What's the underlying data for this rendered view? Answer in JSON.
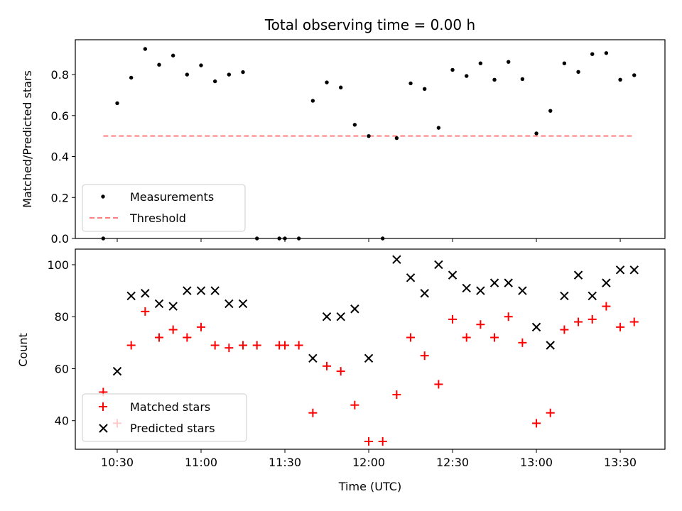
{
  "chart_data": [
    {
      "type": "scatter",
      "title": "Total observing time = 0.00 h",
      "xlabel": "",
      "ylabel": "Matched/Predicted stars",
      "ylim": [
        0,
        0.97
      ],
      "yticks": [
        0.0,
        0.2,
        0.4,
        0.6,
        0.8
      ],
      "ytick_labels": [
        "0.0",
        "0.2",
        "0.4",
        "0.6",
        "0.8"
      ],
      "xticks_minutes": [
        630,
        660,
        690,
        720,
        750,
        780,
        810
      ],
      "xlim_minutes": [
        615,
        826
      ],
      "legend": "lower-left",
      "series": [
        {
          "name": "Measurements",
          "marker": "dot",
          "color": "#000000",
          "x": [
            "10:25",
            "10:30",
            "10:35",
            "10:40",
            "10:45",
            "10:50",
            "10:55",
            "11:00",
            "11:05",
            "11:10",
            "11:15",
            "11:20",
            "11:28",
            "11:30",
            "11:35",
            "11:40",
            "11:45",
            "11:50",
            "11:55",
            "12:00",
            "12:05",
            "12:10",
            "12:15",
            "12:20",
            "12:25",
            "12:30",
            "12:35",
            "12:40",
            "12:45",
            "12:50",
            "12:55",
            "13:00",
            "13:05",
            "13:10",
            "13:15",
            "13:20",
            "13:25",
            "13:30",
            "13:35"
          ],
          "y": [
            0.0,
            0.66,
            0.785,
            0.925,
            0.848,
            0.893,
            0.8,
            0.845,
            0.767,
            0.8,
            0.812,
            0.0,
            0.0,
            0.0,
            0.0,
            0.672,
            0.762,
            0.737,
            0.555,
            0.5,
            0.0,
            0.49,
            0.757,
            0.73,
            0.54,
            0.823,
            0.793,
            0.855,
            0.775,
            0.862,
            0.778,
            0.513,
            0.623,
            0.855,
            0.813,
            0.9,
            0.905,
            0.775,
            0.797
          ]
        },
        {
          "name": "Threshold",
          "marker": "dashed-line",
          "color": "#ff7f7f",
          "x": [
            "10:25",
            "13:35"
          ],
          "y": [
            0.5,
            0.5
          ]
        }
      ]
    },
    {
      "type": "scatter",
      "title": "",
      "xlabel": "Time (UTC)",
      "ylabel": "Count",
      "ylim": [
        29,
        106
      ],
      "yticks": [
        40,
        60,
        80,
        100
      ],
      "ytick_labels": [
        "40",
        "60",
        "80",
        "100"
      ],
      "xticks_minutes": [
        630,
        660,
        690,
        720,
        750,
        780,
        810
      ],
      "xtick_labels": [
        "10:30",
        "11:00",
        "11:30",
        "12:00",
        "12:30",
        "13:00",
        "13:30"
      ],
      "xlim_minutes": [
        615,
        826
      ],
      "legend": "lower-left",
      "series": [
        {
          "name": "Matched stars",
          "marker": "plus",
          "color": "#ff0000",
          "x": [
            "10:25",
            "10:30",
            "10:35",
            "10:40",
            "10:45",
            "10:50",
            "10:55",
            "11:00",
            "11:05",
            "11:10",
            "11:15",
            "11:20",
            "11:28",
            "11:30",
            "11:35",
            "11:40",
            "11:45",
            "11:50",
            "11:55",
            "12:00",
            "12:05",
            "12:10",
            "12:15",
            "12:20",
            "12:25",
            "12:30",
            "12:35",
            "12:40",
            "12:45",
            "12:50",
            "12:55",
            "13:00",
            "13:05",
            "13:10",
            "13:15",
            "13:20",
            "13:25",
            "13:30",
            "13:35"
          ],
          "y": [
            51,
            39,
            69,
            82,
            72,
            75,
            72,
            76,
            69,
            68,
            69,
            69,
            69,
            69,
            69,
            43,
            61,
            59,
            46,
            32,
            32,
            50,
            72,
            65,
            54,
            79,
            72,
            77,
            72,
            80,
            70,
            39,
            43,
            75,
            78,
            79,
            84,
            76,
            78
          ]
        },
        {
          "name": "Predicted stars",
          "marker": "x",
          "color": "#000000",
          "x": [
            "10:30",
            "10:35",
            "10:40",
            "10:45",
            "10:50",
            "10:55",
            "11:00",
            "11:05",
            "11:10",
            "11:15",
            "11:40",
            "11:45",
            "11:50",
            "11:55",
            "12:00",
            "12:10",
            "12:15",
            "12:20",
            "12:25",
            "12:30",
            "12:35",
            "12:40",
            "12:45",
            "12:50",
            "12:55",
            "13:00",
            "13:05",
            "13:10",
            "13:15",
            "13:20",
            "13:25",
            "13:30",
            "13:35"
          ],
          "y": [
            59,
            88,
            89,
            85,
            84,
            90,
            90,
            90,
            85,
            85,
            64,
            80,
            80,
            83,
            64,
            102,
            95,
            89,
            100,
            96,
            91,
            90,
            93,
            93,
            90,
            76,
            69,
            88,
            96,
            88,
            93,
            98,
            98
          ]
        }
      ]
    }
  ]
}
